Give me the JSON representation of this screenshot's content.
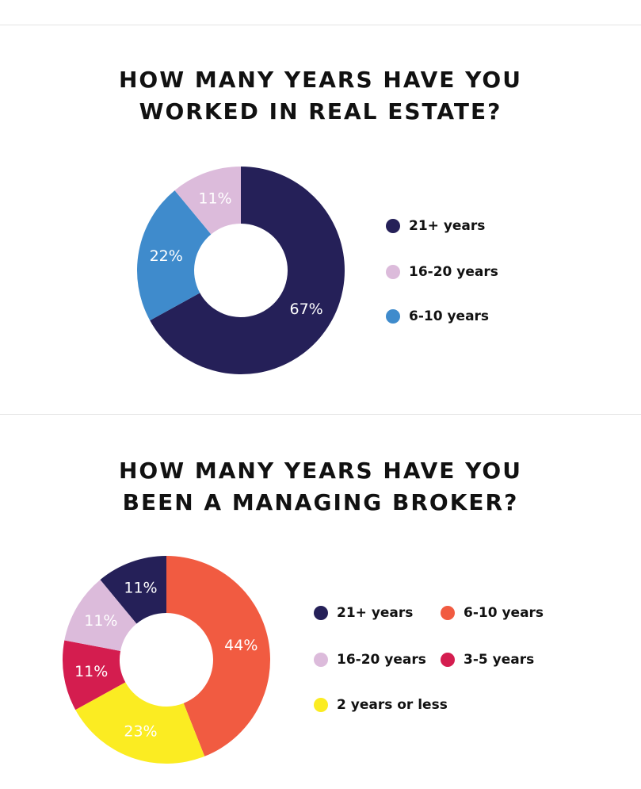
{
  "chart_data": [
    {
      "type": "pie",
      "title_lines": [
        "HOW MANY YEARS HAVE YOU",
        "WORKED IN REAL ESTATE?"
      ],
      "slices": [
        {
          "label": "21+ years",
          "value": 67,
          "display": "67%",
          "color": "#252058"
        },
        {
          "label": "6-10 years",
          "value": 22,
          "display": "22%",
          "color": "#3f8bcc"
        },
        {
          "label": "16-20 years",
          "value": 11,
          "display": "11%",
          "color": "#dcbbdb"
        }
      ],
      "legend": [
        {
          "label": "21+ years",
          "color": "#252058"
        },
        {
          "label": "16-20 years",
          "color": "#dcbbdb"
        },
        {
          "label": "6-10 years",
          "color": "#3f8bcc"
        }
      ],
      "legend_position": "right"
    },
    {
      "type": "pie",
      "title_lines": [
        "HOW MANY YEARS HAVE YOU",
        "BEEN A MANAGING BROKER?"
      ],
      "slices": [
        {
          "label": "6-10 years",
          "value": 44,
          "display": "44%",
          "color": "#f15b41"
        },
        {
          "label": "2 years or less",
          "value": 23,
          "display": "23%",
          "color": "#fbec22"
        },
        {
          "label": "3-5 years",
          "value": 11,
          "display": "11%",
          "color": "#d41d4f"
        },
        {
          "label": "16-20 years",
          "value": 11,
          "display": "11%",
          "color": "#dcbbdb"
        },
        {
          "label": "21+ years",
          "value": 11,
          "display": "11%",
          "color": "#252058"
        }
      ],
      "legend": [
        {
          "label": "21+ years",
          "color": "#252058"
        },
        {
          "label": "6-10 years",
          "color": "#f15b41"
        },
        {
          "label": "16-20 years",
          "color": "#dcbbdb"
        },
        {
          "label": "3-5 years",
          "color": "#d41d4f"
        },
        {
          "label": "2 years or less",
          "color": "#fbec22"
        }
      ],
      "legend_position": "right"
    }
  ]
}
